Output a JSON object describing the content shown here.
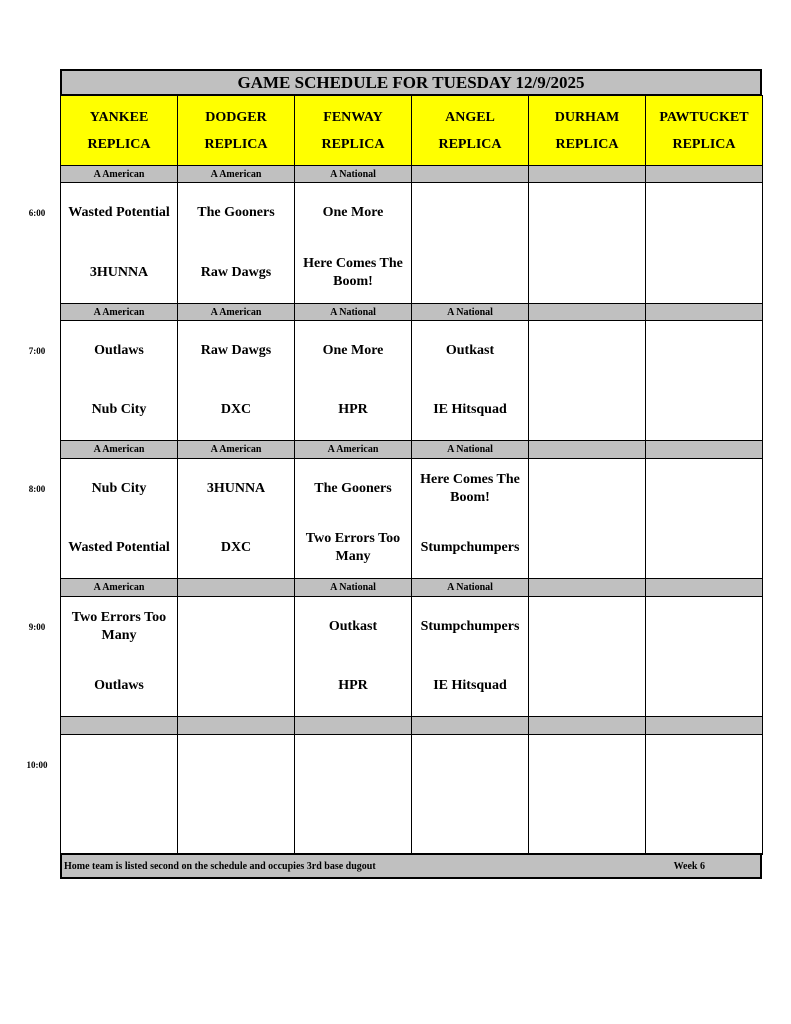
{
  "title": "GAME SCHEDULE FOR TUESDAY 12/9/2025",
  "fields": [
    {
      "name": "YANKEE",
      "sub": "REPLICA"
    },
    {
      "name": "DODGER",
      "sub": "REPLICA"
    },
    {
      "name": "FENWAY",
      "sub": "REPLICA"
    },
    {
      "name": "ANGEL",
      "sub": "REPLICA"
    },
    {
      "name": "DURHAM",
      "sub": "REPLICA"
    },
    {
      "name": "PAWTUCKET",
      "sub": "REPLICA"
    }
  ],
  "slots": [
    {
      "time": "6:00",
      "divisions": [
        "A American",
        "A American",
        "A National",
        "",
        "",
        ""
      ],
      "games": [
        {
          "away": "Wasted Potential",
          "home": "3HUNNA"
        },
        {
          "away": "The Gooners",
          "home": "Raw Dawgs"
        },
        {
          "away": "One More",
          "home": "Here Comes The Boom!"
        },
        {
          "away": "",
          "home": ""
        },
        {
          "away": "",
          "home": ""
        },
        {
          "away": "",
          "home": ""
        }
      ]
    },
    {
      "time": "7:00",
      "divisions": [
        "A American",
        "A American",
        "A National",
        "A National",
        "",
        ""
      ],
      "games": [
        {
          "away": "Outlaws",
          "home": "Nub City"
        },
        {
          "away": "Raw Dawgs",
          "home": "DXC"
        },
        {
          "away": "One More",
          "home": "HPR"
        },
        {
          "away": "Outkast",
          "home": "IE Hitsquad"
        },
        {
          "away": "",
          "home": ""
        },
        {
          "away": "",
          "home": ""
        }
      ]
    },
    {
      "time": "8:00",
      "divisions": [
        "A American",
        "A American",
        "A American",
        "A National",
        "",
        ""
      ],
      "games": [
        {
          "away": "Nub City",
          "home": "Wasted Potential"
        },
        {
          "away": "3HUNNA",
          "home": "DXC"
        },
        {
          "away": "The Gooners",
          "home": "Two Errors Too Many"
        },
        {
          "away": "Here Comes The Boom!",
          "home": "Stumpchumpers"
        },
        {
          "away": "",
          "home": ""
        },
        {
          "away": "",
          "home": ""
        }
      ]
    },
    {
      "time": "9:00",
      "divisions": [
        "A American",
        "",
        "A National",
        "A National",
        "",
        ""
      ],
      "games": [
        {
          "away": "Two Errors Too Many",
          "home": "Outlaws"
        },
        {
          "away": "",
          "home": ""
        },
        {
          "away": "Outkast",
          "home": "HPR"
        },
        {
          "away": "Stumpchumpers",
          "home": "IE Hitsquad"
        },
        {
          "away": "",
          "home": ""
        },
        {
          "away": "",
          "home": ""
        }
      ]
    },
    {
      "time": "10:00",
      "divisions": [
        "",
        "",
        "",
        "",
        "",
        ""
      ],
      "games": [
        {
          "away": "",
          "home": ""
        },
        {
          "away": "",
          "home": ""
        },
        {
          "away": "",
          "home": ""
        },
        {
          "away": "",
          "home": ""
        },
        {
          "away": "",
          "home": ""
        },
        {
          "away": "",
          "home": ""
        }
      ]
    }
  ],
  "footer": {
    "note": "Home team is listed second on the schedule and occupies 3rd base dugout",
    "week": "Week 6"
  },
  "colors": {
    "header": "#ffff00",
    "band": "#c0c0c0"
  }
}
